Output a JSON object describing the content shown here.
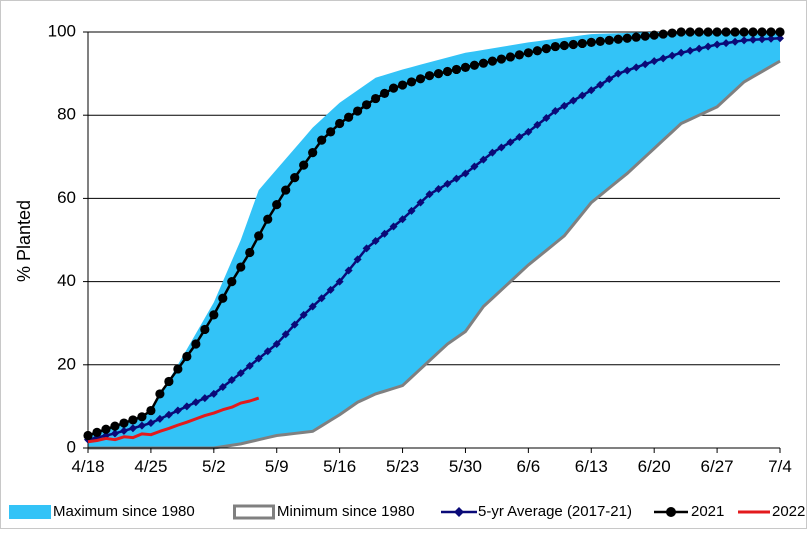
{
  "chart_data": {
    "type": "area",
    "title": "",
    "xlabel": "",
    "ylabel": "% Planted",
    "ylim": [
      0,
      100
    ],
    "yticks": [
      0,
      20,
      40,
      60,
      80,
      100
    ],
    "xticks": [
      "4/18",
      "4/25",
      "5/2",
      "5/9",
      "5/16",
      "5/23",
      "5/30",
      "6/6",
      "6/13",
      "6/20",
      "6/27",
      "7/4"
    ],
    "x_day_range": [
      0,
      77
    ],
    "grid": "horizontal",
    "legend_position": "bottom",
    "colors": {
      "max_band": "#33c3f7",
      "min_line": "#808080",
      "avg": "#0a0a78",
      "y2021": "#000000",
      "y2022": "#e31a1c"
    },
    "series": [
      {
        "name": "Maximum since 1980",
        "style": "band-upper",
        "x": [
          0,
          4,
          7,
          10,
          14,
          17,
          19,
          21,
          25,
          28,
          32,
          35,
          42,
          49,
          56,
          63,
          70,
          77
        ],
        "y": [
          3,
          6,
          9,
          20,
          35,
          50,
          62,
          67,
          77,
          83,
          89,
          91,
          95,
          97.5,
          99.5,
          100,
          100,
          100
        ]
      },
      {
        "name": "Minimum since 1980",
        "style": "band-lower",
        "x": [
          0,
          14,
          17,
          19,
          21,
          25,
          28,
          30,
          32,
          35,
          38,
          40,
          42,
          44,
          46,
          49,
          53,
          56,
          60,
          63,
          66,
          70,
          73,
          77
        ],
        "y": [
          0,
          0,
          1,
          2,
          3,
          4,
          8,
          11,
          13,
          15,
          21,
          25,
          28,
          34,
          38,
          44,
          51,
          59,
          66,
          72,
          78,
          82,
          88,
          93
        ]
      },
      {
        "name": "5-yr Average (2017-21)",
        "style": "line-marker-diamond",
        "x": [
          0,
          3,
          7,
          10,
          14,
          17,
          21,
          24,
          28,
          31,
          35,
          38,
          42,
          45,
          49,
          52,
          56,
          59,
          63,
          66,
          70,
          73,
          77
        ],
        "y": [
          2,
          3.5,
          6,
          9,
          13,
          18,
          25,
          32,
          40,
          48,
          55,
          61,
          66,
          71,
          76,
          81,
          86,
          90,
          93,
          95,
          97,
          98,
          98.5
        ]
      },
      {
        "name": "2021",
        "style": "line-marker-circle",
        "x": [
          0,
          2,
          4,
          6,
          7,
          8,
          10,
          12,
          14,
          16,
          18,
          20,
          22,
          24,
          26,
          28,
          30,
          32,
          34,
          36,
          38,
          40,
          42,
          44,
          46,
          48,
          50,
          52,
          54,
          56,
          58,
          60,
          62,
          64,
          66,
          68,
          70,
          72,
          74,
          77
        ],
        "y": [
          3,
          4.5,
          6,
          7.5,
          9,
          13,
          19,
          25,
          32,
          40,
          47,
          55,
          62,
          68,
          74,
          78,
          81,
          84,
          86.5,
          88,
          89.5,
          90.5,
          91.5,
          92.5,
          93.5,
          94.5,
          95.5,
          96.5,
          97,
          97.5,
          98,
          98.5,
          99,
          99.5,
          100,
          100,
          100,
          100,
          100,
          100
        ]
      },
      {
        "name": "2022",
        "style": "line",
        "x": [
          0,
          1,
          2,
          3,
          4,
          5,
          6,
          7,
          8,
          9,
          10,
          11,
          12,
          13,
          14,
          15,
          16,
          17,
          18,
          19
        ],
        "y": [
          1.5,
          1.8,
          2.3,
          2.0,
          2.7,
          2.5,
          3.4,
          3.2,
          4.0,
          4.7,
          5.5,
          6.2,
          7.0,
          7.8,
          8.4,
          9.2,
          9.8,
          10.8,
          11.3,
          12.0
        ]
      }
    ]
  }
}
